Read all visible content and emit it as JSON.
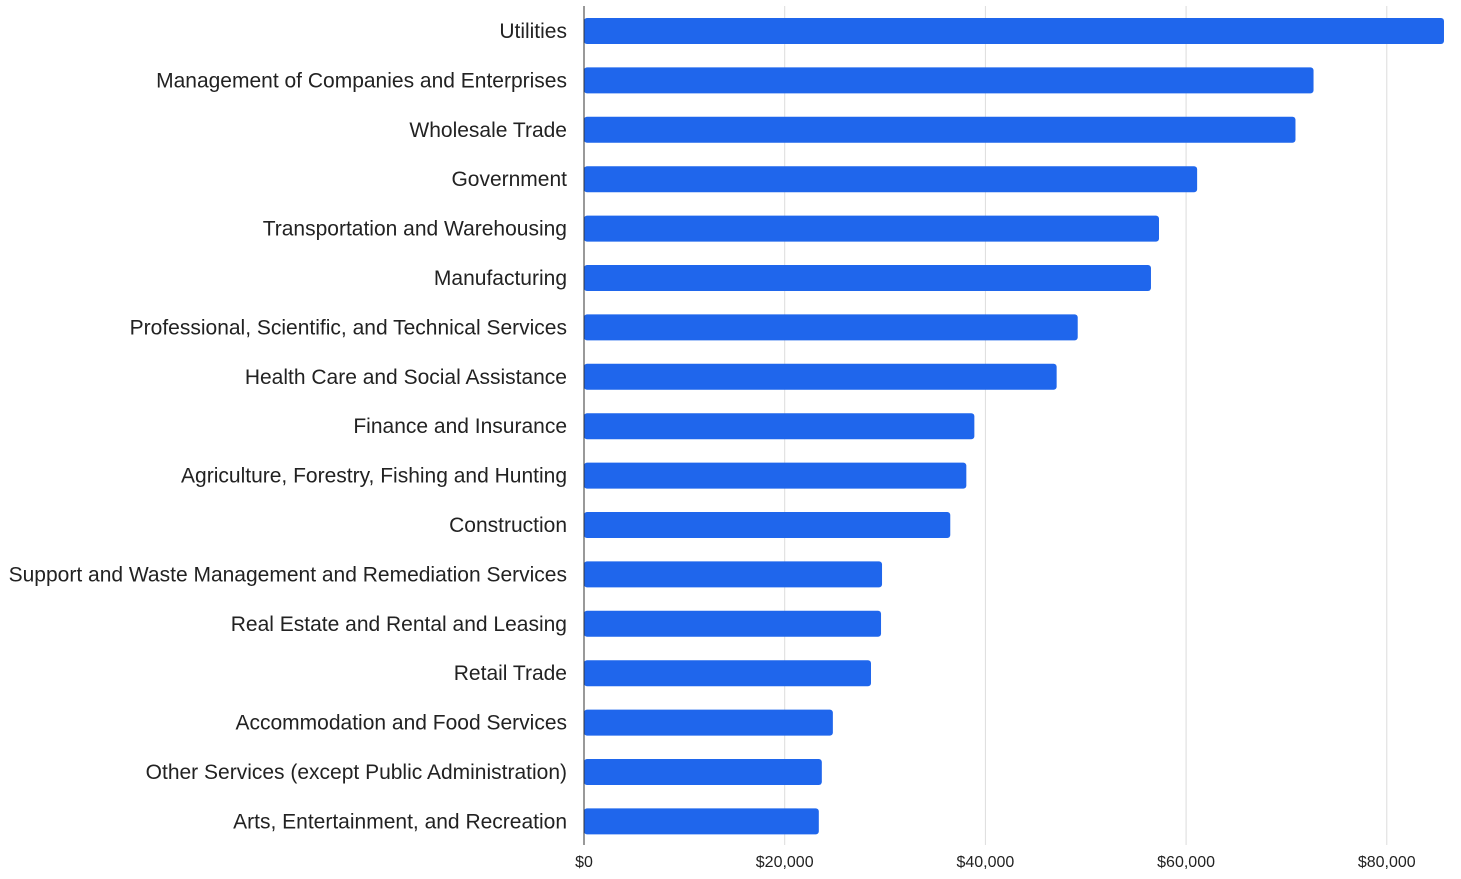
{
  "chart_data": {
    "type": "bar",
    "orientation": "horizontal",
    "title": "",
    "xlabel": "",
    "ylabel": "",
    "categories": [
      "Utilities",
      "Management of Companies and Enterprises",
      "Wholesale Trade",
      "Government",
      "Transportation and Warehousing",
      "Manufacturing",
      "Professional, Scientific, and Technical Services",
      "Health Care and Social Assistance",
      "Finance and Insurance",
      "Agriculture, Forestry, Fishing and Hunting",
      "Construction",
      "Support and Waste Management and Remediation Services",
      "Real Estate and Rental and Leasing",
      "Retail Trade",
      "Accommodation and Food Services",
      "Other Services (except Public Administration)",
      "Arts, Entertainment, and Recreation"
    ],
    "values": [
      85700,
      72700,
      70900,
      61100,
      57300,
      56500,
      49200,
      47100,
      38900,
      38100,
      36500,
      29700,
      29600,
      28600,
      24800,
      23700,
      23400
    ],
    "xlim": [
      0,
      86000
    ],
    "xticks": [
      0,
      20000,
      40000,
      60000,
      80000
    ],
    "xtick_labels": [
      "$0",
      "$20,000",
      "$40,000",
      "$60,000",
      "$80,000"
    ],
    "grid": true,
    "legend": "none",
    "bar_color": "#1f66ec"
  }
}
